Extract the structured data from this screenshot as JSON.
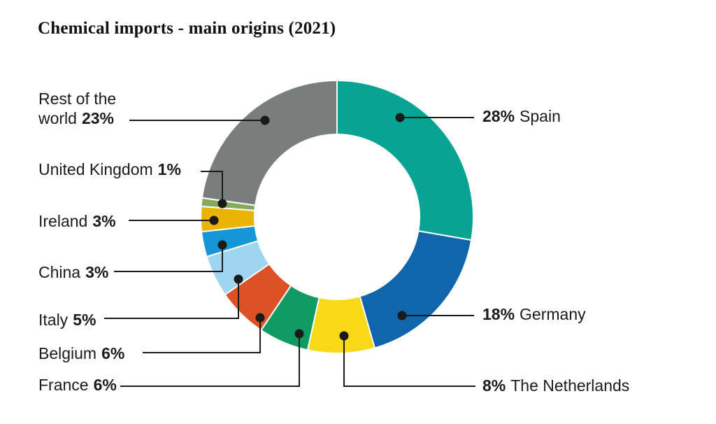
{
  "header": {
    "title": "Chemical imports - main origins (2021)"
  },
  "chart_data": {
    "type": "pie",
    "subtype": "donut",
    "title": "Chemical imports - main origins (2021)",
    "unit": "%",
    "value_sum": 101,
    "line_color": "#1a1a1a",
    "separator_color": "#ffffff",
    "segments": [
      {
        "name": "Spain",
        "value": 28,
        "pct_label": "28%",
        "color": "#07a493",
        "label_side": "right"
      },
      {
        "name": "Germany",
        "value": 18,
        "pct_label": "18%",
        "color": "#1165ab",
        "label_side": "right"
      },
      {
        "name": "The Netherlands",
        "value": 8,
        "pct_label": "8%",
        "color": "#f7d917",
        "label_side": "right"
      },
      {
        "name": "France",
        "value": 6,
        "pct_label": "6%",
        "color": "#109b62",
        "label_side": "left"
      },
      {
        "name": "Belgium",
        "value": 6,
        "pct_label": "6%",
        "color": "#dc5226",
        "label_side": "left"
      },
      {
        "name": "Italy",
        "value": 5,
        "pct_label": "5%",
        "color": "#9fd5ef",
        "label_side": "left"
      },
      {
        "name": "China",
        "value": 3,
        "pct_label": "3%",
        "color": "#1596d7",
        "label_side": "left"
      },
      {
        "name": "Ireland",
        "value": 3,
        "pct_label": "3%",
        "color": "#e9b502",
        "label_side": "left"
      },
      {
        "name": "United Kingdom",
        "value": 1,
        "pct_label": "1%",
        "color": "#84ab5c",
        "label_side": "left"
      },
      {
        "name": "Rest of the world",
        "value": 23,
        "pct_label": "23%",
        "color": "#797d7c",
        "label_side": "left"
      }
    ]
  }
}
